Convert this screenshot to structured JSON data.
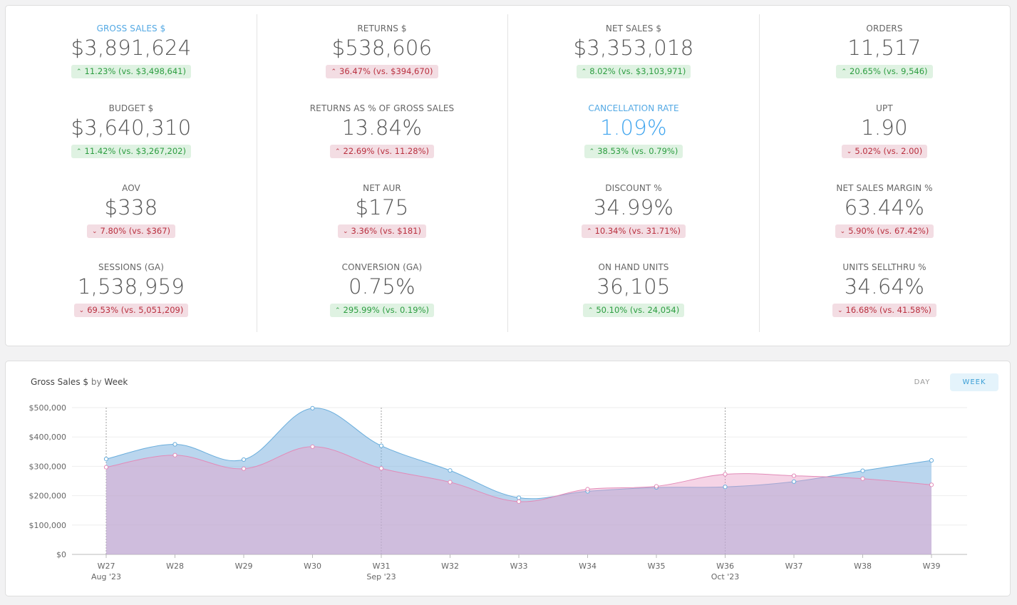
{
  "kpis": [
    [
      {
        "label": "GROSS SALES $",
        "value": "$3,891,624",
        "delta": "11.23% (vs. $3,498,641)",
        "dir": "up",
        "tone": "good",
        "highlight": true
      },
      {
        "label": "BUDGET $",
        "value": "$3,640,310",
        "delta": "11.42% (vs. $3,267,202)",
        "dir": "up",
        "tone": "good",
        "highlight": false
      },
      {
        "label": "AOV",
        "value": "$338",
        "delta": "7.80% (vs. $367)",
        "dir": "down",
        "tone": "bad",
        "highlight": false
      },
      {
        "label": "SESSIONS (GA)",
        "value": "1,538,959",
        "delta": "69.53% (vs. 5,051,209)",
        "dir": "down",
        "tone": "bad",
        "highlight": false
      }
    ],
    [
      {
        "label": "RETURNS $",
        "value": "$538,606",
        "delta": "36.47% (vs. $394,670)",
        "dir": "up",
        "tone": "bad",
        "highlight": false
      },
      {
        "label": "RETURNS AS % OF GROSS SALES",
        "value": "13.84%",
        "delta": "22.69% (vs. 11.28%)",
        "dir": "up",
        "tone": "bad",
        "highlight": false
      },
      {
        "label": "NET AUR",
        "value": "$175",
        "delta": "3.36% (vs. $181)",
        "dir": "down",
        "tone": "bad",
        "highlight": false
      },
      {
        "label": "CONVERSION (GA)",
        "value": "0.75%",
        "delta": "295.99% (vs. 0.19%)",
        "dir": "up",
        "tone": "good",
        "highlight": false
      }
    ],
    [
      {
        "label": "NET SALES $",
        "value": "$3,353,018",
        "delta": "8.02% (vs. $3,103,971)",
        "dir": "up",
        "tone": "good",
        "highlight": false
      },
      {
        "label": "CANCELLATION RATE",
        "value": "1.09%",
        "delta": "38.53% (vs. 0.79%)",
        "dir": "up",
        "tone": "good",
        "highlight": true
      },
      {
        "label": "DISCOUNT %",
        "value": "34.99%",
        "delta": "10.34% (vs. 31.71%)",
        "dir": "up",
        "tone": "bad",
        "highlight": false
      },
      {
        "label": "ON HAND UNITS",
        "value": "36,105",
        "delta": "50.10% (vs. 24,054)",
        "dir": "up",
        "tone": "good",
        "highlight": false
      }
    ],
    [
      {
        "label": "ORDERS",
        "value": "11,517",
        "delta": "20.65% (vs. 9,546)",
        "dir": "up",
        "tone": "good",
        "highlight": false
      },
      {
        "label": "UPT",
        "value": "1.90",
        "delta": "5.02% (vs. 2.00)",
        "dir": "down",
        "tone": "bad",
        "highlight": false
      },
      {
        "label": "NET SALES MARGIN %",
        "value": "63.44%",
        "delta": "5.90% (vs. 67.42%)",
        "dir": "down",
        "tone": "bad",
        "highlight": false
      },
      {
        "label": "UNITS SELLTHRU %",
        "value": "34.64%",
        "delta": "16.68% (vs. 41.58%)",
        "dir": "down",
        "tone": "bad",
        "highlight": false
      }
    ]
  ],
  "chart": {
    "title_metric": "Gross Sales $",
    "title_by": "by",
    "title_dim": "Week",
    "toggle_day": "DAY",
    "toggle_week": "WEEK",
    "active_toggle": "WEEK"
  },
  "chart_data": {
    "type": "area",
    "categories": [
      "W27",
      "W28",
      "W29",
      "W30",
      "W31",
      "W32",
      "W33",
      "W34",
      "W35",
      "W36",
      "W37",
      "W38",
      "W39"
    ],
    "month_labels": [
      {
        "index": 0,
        "label": "Aug '23"
      },
      {
        "index": 4,
        "label": "Sep '23"
      },
      {
        "index": 9,
        "label": "Oct '23"
      }
    ],
    "series": [
      {
        "name": "",
        "color": "#82b4e0",
        "values": [
          325000,
          375000,
          323000,
          498000,
          370000,
          286000,
          193000,
          215000,
          228000,
          230000,
          248000,
          285000,
          320000
        ]
      },
      {
        "name": "",
        "color": "#e8a6c8",
        "values": [
          297000,
          338000,
          292000,
          367000,
          293000,
          246000,
          180000,
          222000,
          232000,
          273000,
          268000,
          258000,
          237000
        ]
      }
    ],
    "yticks": [
      "$0",
      "$100,000",
      "$200,000",
      "$300,000",
      "$400,000",
      "$500,000"
    ],
    "ytick_values": [
      0,
      100000,
      200000,
      300000,
      400000,
      500000
    ],
    "ylim": [
      0,
      500000
    ],
    "grid": true,
    "legend": "none"
  }
}
